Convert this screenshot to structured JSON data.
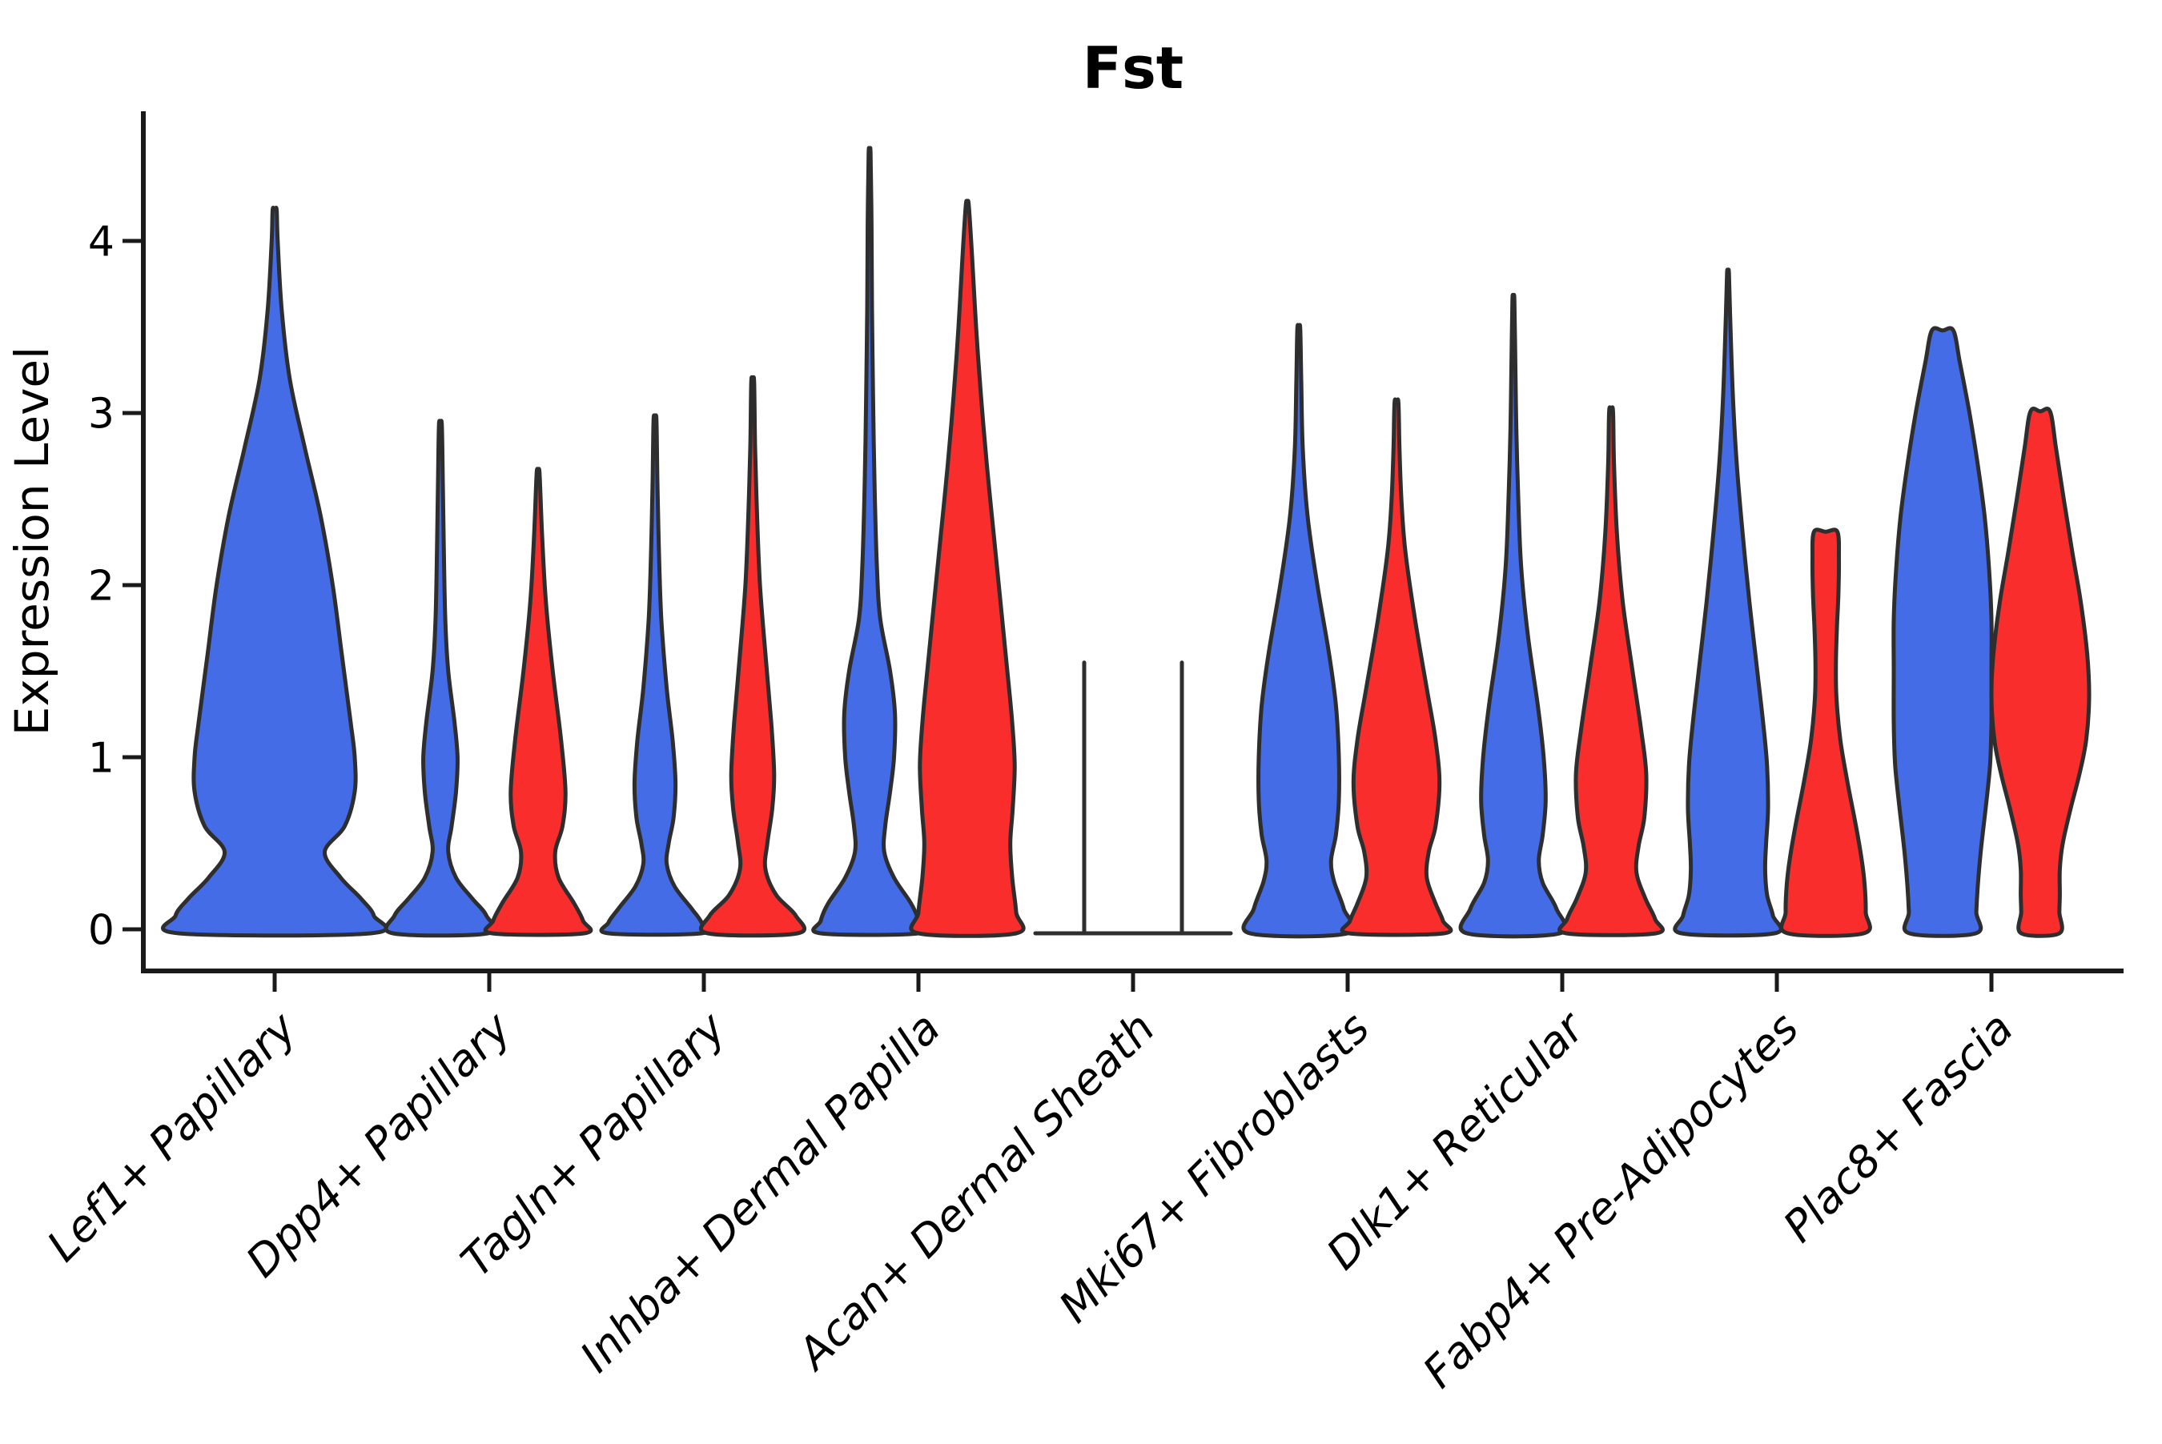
{
  "chart_data": {
    "type": "violin",
    "title": "Fst",
    "ylabel": "Expression Level",
    "ylim": [
      -0.15,
      4.75
    ],
    "yticks": [
      0,
      1,
      2,
      3,
      4
    ],
    "grid": false,
    "legend": "none",
    "colors": {
      "blue": "#446CE7",
      "red": "#FA2D2D",
      "outline": "#2E2E2E",
      "axis": "#1A1A1A",
      "text": "#000000"
    },
    "categories": [
      "Lef1+ Papillary",
      "Dpp4+ Papillary",
      "Tagln+ Papillary",
      "Inhba+ Dermal Papilla",
      "Acan+ Dermal Sheath",
      "Mki67+ Fibroblasts",
      "Dlk1+ Reticular",
      "Fabp4+ Pre-Adipocytes",
      "Plac8+ Fascia"
    ],
    "violins": [
      {
        "category_index": 0,
        "group": "blue",
        "span": "full",
        "max": 4.18,
        "profile": [
          [
            4.18,
            0.02
          ],
          [
            4.0,
            0.03
          ],
          [
            3.6,
            0.07
          ],
          [
            3.2,
            0.15
          ],
          [
            2.8,
            0.3
          ],
          [
            2.4,
            0.46
          ],
          [
            2.0,
            0.58
          ],
          [
            1.6,
            0.67
          ],
          [
            1.2,
            0.76
          ],
          [
            1.0,
            0.8
          ],
          [
            0.8,
            0.8
          ],
          [
            0.6,
            0.7
          ],
          [
            0.45,
            0.5
          ],
          [
            0.3,
            0.66
          ],
          [
            0.18,
            0.86
          ],
          [
            0.08,
            0.99
          ],
          [
            0.0,
            0.96
          ]
        ]
      },
      {
        "category_index": 1,
        "group": "blue",
        "span": "half",
        "max": 2.93,
        "profile": [
          [
            2.93,
            0.03
          ],
          [
            2.6,
            0.05
          ],
          [
            2.2,
            0.07
          ],
          [
            1.8,
            0.1
          ],
          [
            1.5,
            0.16
          ],
          [
            1.2,
            0.29
          ],
          [
            1.0,
            0.35
          ],
          [
            0.8,
            0.32
          ],
          [
            0.6,
            0.23
          ],
          [
            0.45,
            0.16
          ],
          [
            0.3,
            0.32
          ],
          [
            0.18,
            0.65
          ],
          [
            0.08,
            0.94
          ],
          [
            0.0,
            0.97
          ]
        ]
      },
      {
        "category_index": 1,
        "group": "red",
        "span": "half",
        "max": 2.65,
        "profile": [
          [
            2.65,
            0.03
          ],
          [
            2.3,
            0.08
          ],
          [
            1.9,
            0.16
          ],
          [
            1.5,
            0.3
          ],
          [
            1.1,
            0.47
          ],
          [
            0.8,
            0.56
          ],
          [
            0.6,
            0.5
          ],
          [
            0.45,
            0.35
          ],
          [
            0.3,
            0.42
          ],
          [
            0.15,
            0.74
          ],
          [
            0.05,
            0.92
          ],
          [
            0.0,
            0.94
          ]
        ]
      },
      {
        "category_index": 2,
        "group": "blue",
        "span": "half",
        "max": 2.96,
        "profile": [
          [
            2.96,
            0.03
          ],
          [
            2.6,
            0.05
          ],
          [
            2.2,
            0.08
          ],
          [
            1.8,
            0.13
          ],
          [
            1.4,
            0.24
          ],
          [
            1.1,
            0.36
          ],
          [
            0.85,
            0.42
          ],
          [
            0.65,
            0.38
          ],
          [
            0.5,
            0.28
          ],
          [
            0.38,
            0.24
          ],
          [
            0.25,
            0.4
          ],
          [
            0.12,
            0.75
          ],
          [
            0.04,
            0.95
          ],
          [
            0.0,
            0.95
          ]
        ]
      },
      {
        "category_index": 2,
        "group": "red",
        "span": "half",
        "max": 3.18,
        "profile": [
          [
            3.18,
            0.03
          ],
          [
            2.8,
            0.05
          ],
          [
            2.4,
            0.09
          ],
          [
            2.0,
            0.15
          ],
          [
            1.6,
            0.26
          ],
          [
            1.2,
            0.38
          ],
          [
            0.9,
            0.44
          ],
          [
            0.7,
            0.4
          ],
          [
            0.5,
            0.3
          ],
          [
            0.35,
            0.26
          ],
          [
            0.2,
            0.48
          ],
          [
            0.08,
            0.88
          ],
          [
            0.0,
            0.92
          ]
        ]
      },
      {
        "category_index": 3,
        "group": "blue",
        "span": "half",
        "max": 4.51,
        "profile": [
          [
            4.51,
            0.02
          ],
          [
            4.1,
            0.04
          ],
          [
            3.6,
            0.05
          ],
          [
            3.1,
            0.07
          ],
          [
            2.6,
            0.1
          ],
          [
            2.1,
            0.15
          ],
          [
            1.8,
            0.22
          ],
          [
            1.5,
            0.42
          ],
          [
            1.25,
            0.52
          ],
          [
            1.0,
            0.5
          ],
          [
            0.8,
            0.42
          ],
          [
            0.6,
            0.32
          ],
          [
            0.45,
            0.3
          ],
          [
            0.3,
            0.5
          ],
          [
            0.15,
            0.85
          ],
          [
            0.05,
            1.0
          ],
          [
            0.0,
            1.0
          ]
        ]
      },
      {
        "category_index": 3,
        "group": "red",
        "span": "half",
        "max": 4.21,
        "profile": [
          [
            4.21,
            0.03
          ],
          [
            3.9,
            0.1
          ],
          [
            3.5,
            0.18
          ],
          [
            3.1,
            0.28
          ],
          [
            2.7,
            0.4
          ],
          [
            2.3,
            0.54
          ],
          [
            1.9,
            0.68
          ],
          [
            1.5,
            0.82
          ],
          [
            1.2,
            0.92
          ],
          [
            0.95,
            0.97
          ],
          [
            0.7,
            0.93
          ],
          [
            0.5,
            0.88
          ],
          [
            0.3,
            0.92
          ],
          [
            0.1,
            1.0
          ],
          [
            0.0,
            1.0
          ]
        ]
      },
      {
        "category_index": 4,
        "group": "blue",
        "span": "half",
        "max": 1.55,
        "degenerate": true,
        "profile": []
      },
      {
        "category_index": 4,
        "group": "red",
        "span": "half",
        "max": 1.55,
        "degenerate": true,
        "profile": []
      },
      {
        "category_index": 5,
        "group": "blue",
        "span": "half",
        "max": 3.49,
        "profile": [
          [
            3.49,
            0.03
          ],
          [
            3.2,
            0.05
          ],
          [
            2.8,
            0.08
          ],
          [
            2.4,
            0.18
          ],
          [
            2.0,
            0.38
          ],
          [
            1.6,
            0.62
          ],
          [
            1.3,
            0.76
          ],
          [
            1.0,
            0.82
          ],
          [
            0.75,
            0.82
          ],
          [
            0.55,
            0.76
          ],
          [
            0.4,
            0.66
          ],
          [
            0.28,
            0.72
          ],
          [
            0.12,
            0.92
          ],
          [
            0.0,
            1.0
          ]
        ]
      },
      {
        "category_index": 5,
        "group": "red",
        "span": "half",
        "max": 3.06,
        "profile": [
          [
            3.06,
            0.04
          ],
          [
            2.8,
            0.06
          ],
          [
            2.5,
            0.1
          ],
          [
            2.2,
            0.18
          ],
          [
            1.8,
            0.38
          ],
          [
            1.4,
            0.62
          ],
          [
            1.1,
            0.8
          ],
          [
            0.85,
            0.88
          ],
          [
            0.6,
            0.8
          ],
          [
            0.45,
            0.66
          ],
          [
            0.3,
            0.62
          ],
          [
            0.15,
            0.8
          ],
          [
            0.05,
            0.95
          ],
          [
            0.0,
            0.97
          ]
        ]
      },
      {
        "category_index": 6,
        "group": "blue",
        "span": "half",
        "max": 3.66,
        "profile": [
          [
            3.66,
            0.02
          ],
          [
            3.3,
            0.04
          ],
          [
            2.9,
            0.06
          ],
          [
            2.5,
            0.1
          ],
          [
            2.1,
            0.16
          ],
          [
            1.7,
            0.3
          ],
          [
            1.3,
            0.5
          ],
          [
            1.0,
            0.62
          ],
          [
            0.75,
            0.66
          ],
          [
            0.55,
            0.6
          ],
          [
            0.4,
            0.52
          ],
          [
            0.27,
            0.6
          ],
          [
            0.12,
            0.88
          ],
          [
            0.0,
            0.95
          ]
        ]
      },
      {
        "category_index": 6,
        "group": "red",
        "span": "half",
        "max": 3.01,
        "profile": [
          [
            3.01,
            0.04
          ],
          [
            2.7,
            0.06
          ],
          [
            2.3,
            0.12
          ],
          [
            1.9,
            0.24
          ],
          [
            1.5,
            0.44
          ],
          [
            1.15,
            0.62
          ],
          [
            0.9,
            0.72
          ],
          [
            0.65,
            0.68
          ],
          [
            0.48,
            0.56
          ],
          [
            0.33,
            0.52
          ],
          [
            0.18,
            0.7
          ],
          [
            0.06,
            0.9
          ],
          [
            0.0,
            0.92
          ]
        ]
      },
      {
        "category_index": 7,
        "group": "blue",
        "span": "half",
        "max": 3.81,
        "profile": [
          [
            3.81,
            0.02
          ],
          [
            3.5,
            0.05
          ],
          [
            3.1,
            0.1
          ],
          [
            2.7,
            0.18
          ],
          [
            2.3,
            0.3
          ],
          [
            1.9,
            0.44
          ],
          [
            1.5,
            0.6
          ],
          [
            1.2,
            0.72
          ],
          [
            0.95,
            0.8
          ],
          [
            0.7,
            0.82
          ],
          [
            0.5,
            0.78
          ],
          [
            0.35,
            0.76
          ],
          [
            0.2,
            0.8
          ],
          [
            0.08,
            0.92
          ],
          [
            0.0,
            0.95
          ]
        ]
      },
      {
        "category_index": 7,
        "group": "red",
        "span": "half",
        "max": 2.31,
        "profile": [
          [
            2.31,
            0.24
          ],
          [
            2.15,
            0.27
          ],
          [
            1.95,
            0.26
          ],
          [
            1.75,
            0.23
          ],
          [
            1.55,
            0.21
          ],
          [
            1.35,
            0.22
          ],
          [
            1.1,
            0.3
          ],
          [
            0.85,
            0.45
          ],
          [
            0.6,
            0.62
          ],
          [
            0.4,
            0.74
          ],
          [
            0.25,
            0.8
          ],
          [
            0.1,
            0.82
          ],
          [
            0.0,
            0.78
          ]
        ]
      },
      {
        "category_index": 8,
        "group": "blue",
        "span": "half",
        "max": 3.48,
        "profile": [
          [
            3.48,
            0.22
          ],
          [
            3.3,
            0.35
          ],
          [
            3.0,
            0.55
          ],
          [
            2.7,
            0.72
          ],
          [
            2.4,
            0.86
          ],
          [
            2.1,
            0.95
          ],
          [
            1.8,
            1.0
          ],
          [
            1.5,
            1.0
          ],
          [
            1.2,
            1.0
          ],
          [
            0.95,
            0.97
          ],
          [
            0.7,
            0.88
          ],
          [
            0.45,
            0.78
          ],
          [
            0.25,
            0.72
          ],
          [
            0.1,
            0.69
          ],
          [
            0.0,
            0.68
          ]
        ]
      },
      {
        "category_index": 8,
        "group": "red",
        "span": "half",
        "max": 3.01,
        "profile": [
          [
            3.01,
            0.2
          ],
          [
            2.8,
            0.32
          ],
          [
            2.5,
            0.48
          ],
          [
            2.2,
            0.65
          ],
          [
            1.9,
            0.83
          ],
          [
            1.6,
            0.96
          ],
          [
            1.35,
            1.0
          ],
          [
            1.1,
            0.94
          ],
          [
            0.9,
            0.8
          ],
          [
            0.7,
            0.62
          ],
          [
            0.5,
            0.46
          ],
          [
            0.35,
            0.4
          ],
          [
            0.2,
            0.4
          ],
          [
            0.1,
            0.39
          ],
          [
            0.0,
            0.39
          ]
        ]
      }
    ]
  }
}
